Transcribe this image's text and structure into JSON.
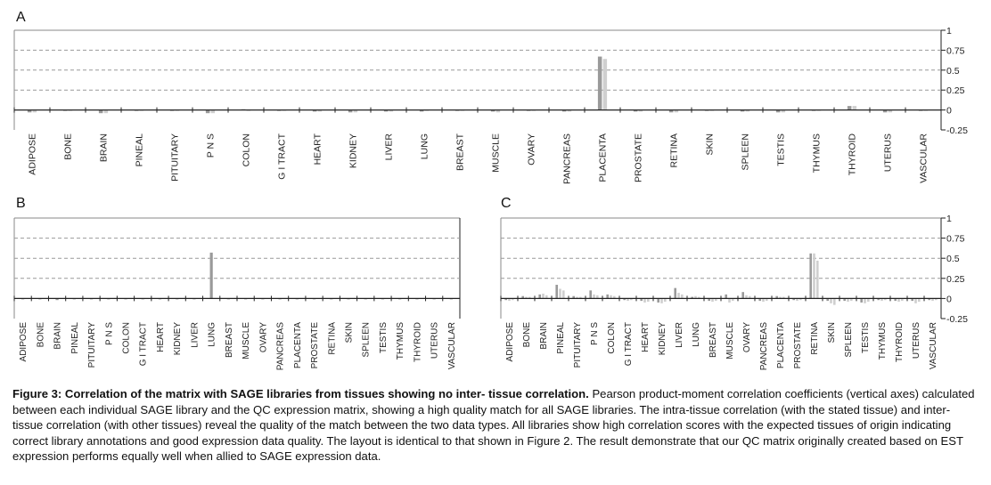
{
  "figure": {
    "caption_title": "Figure 3: Correlation of the matrix with SAGE libraries from tissues showing no inter- tissue correlation.",
    "caption_body": " Pearson product-moment correlation coefficients (vertical axes) calculated between each individual SAGE library and the QC expression matrix, showing a high quality match for all SAGE libraries.  The intra-tissue correlation (with the stated tissue) and inter-tissue correlation (with other tissues) reveal the quality of the match between the two data types.  All libraries show high correlation scores with the expected tissues of origin indicating correct library annotations and good expression data quality.  The layout is identical to that shown in Figure 2.  The result demonstrate that our QC matrix originally created based on EST expression performs equally well when allied to SAGE expression data."
  },
  "colors": {
    "dark_bar": "#9a9a9a",
    "light_bar": "#cfcfcf",
    "axis": "#222222",
    "grid": "#999999"
  },
  "chart_data": [
    {
      "panel": "A",
      "type": "bar",
      "ylim": [
        -0.25,
        1
      ],
      "yticks": [
        1,
        0.75,
        0.5,
        0.25,
        0,
        -0.25
      ],
      "categories": [
        "ADIPOSE",
        "BONE",
        "BRAIN",
        "PINEAL",
        "PITUITARY",
        "P N S",
        "COLON",
        "G I TRACT",
        "HEART",
        "KIDNEY",
        "LIVER",
        "LUNG",
        "BREAST",
        "MUSCLE",
        "OVARY",
        "PANCREAS",
        "PLACENTA",
        "PROSTATE",
        "RETINA",
        "SKIN",
        "SPLEEN",
        "TESTIS",
        "THYMUS",
        "THYROID",
        "UTERUS",
        "VASCULAR"
      ],
      "grid": "dashed horizontal",
      "series": [
        {
          "values": [
            -0.03,
            -0.01,
            -0.04,
            -0.01,
            -0.01,
            -0.04,
            0.01,
            -0.01,
            -0.02,
            -0.03,
            -0.02,
            -0.02,
            -0.01,
            -0.02,
            -0.01,
            -0.02,
            0.67,
            -0.02,
            -0.03,
            -0.01,
            -0.02,
            -0.03,
            -0.01,
            0.05,
            -0.03,
            -0.01
          ]
        },
        {
          "values": [
            -0.03,
            -0.01,
            -0.04,
            -0.01,
            -0.01,
            -0.04,
            0.0,
            -0.01,
            -0.02,
            -0.03,
            -0.02,
            -0.01,
            -0.01,
            -0.03,
            -0.01,
            -0.02,
            0.64,
            -0.02,
            -0.03,
            -0.01,
            -0.02,
            -0.03,
            -0.01,
            0.05,
            -0.03,
            -0.01
          ]
        }
      ]
    },
    {
      "panel": "B",
      "type": "bar",
      "ylim": [
        -0.25,
        1
      ],
      "categories": [
        "ADIPOSE",
        "BONE",
        "BRAIN",
        "PINEAL",
        "PITUITARY",
        "P N S",
        "COLON",
        "G I TRACT",
        "HEART",
        "KIDNEY",
        "LIVER",
        "LUNG",
        "BREAST",
        "MUSCLE",
        "OVARY",
        "PANCREAS",
        "PLACENTA",
        "PROSTATE",
        "RETINA",
        "SKIN",
        "SPLEEN",
        "TESTIS",
        "THYMUS",
        "THYROID",
        "UTERUS",
        "VASCULAR"
      ],
      "grid": "dashed horizontal",
      "series": [
        {
          "values": [
            -0.01,
            -0.01,
            -0.02,
            -0.01,
            -0.01,
            -0.01,
            -0.01,
            -0.01,
            -0.01,
            -0.01,
            -0.01,
            0.57,
            -0.01,
            -0.01,
            -0.01,
            -0.01,
            -0.01,
            -0.01,
            -0.01,
            -0.01,
            -0.01,
            -0.01,
            -0.01,
            -0.01,
            -0.01,
            -0.01
          ]
        }
      ]
    },
    {
      "panel": "C",
      "type": "bar",
      "ylim": [
        -0.25,
        1
      ],
      "yticks": [
        1,
        0.75,
        0.5,
        0.25,
        0,
        -0.25
      ],
      "categories": [
        "ADIPOSE",
        "BONE",
        "BRAIN",
        "PINEAL",
        "PITUITARY",
        "P N S",
        "COLON",
        "G I TRACT",
        "HEART",
        "KIDNEY",
        "LIVER",
        "LUNG",
        "BREAST",
        "MUSCLE",
        "OVARY",
        "PANCREAS",
        "PLACENTA",
        "PROSTATE",
        "RETINA",
        "SKIN",
        "SPLEEN",
        "TESTIS",
        "THYMUS",
        "THYROID",
        "UTERUS",
        "VASCULAR"
      ],
      "grid": "dashed horizontal",
      "series": [
        {
          "values": [
            -0.02,
            0.03,
            0.05,
            0.17,
            0.03,
            0.1,
            0.05,
            -0.02,
            -0.03,
            -0.05,
            0.13,
            0.02,
            -0.03,
            0.05,
            0.08,
            -0.03,
            0.03,
            -0.02,
            0.56,
            -0.03,
            -0.03,
            -0.05,
            -0.02,
            -0.03,
            -0.03,
            -0.02
          ]
        },
        {
          "values": [
            -0.03,
            0.02,
            0.06,
            0.12,
            0.02,
            0.05,
            0.04,
            -0.03,
            -0.05,
            -0.06,
            0.07,
            0.03,
            -0.04,
            -0.05,
            0.04,
            -0.04,
            0.02,
            -0.03,
            0.56,
            -0.06,
            -0.04,
            -0.06,
            -0.03,
            -0.04,
            -0.06,
            -0.03
          ]
        },
        {
          "values": [
            -0.02,
            0.02,
            0.04,
            0.1,
            0.02,
            0.04,
            0.03,
            -0.02,
            -0.04,
            -0.04,
            0.05,
            0.02,
            -0.03,
            -0.03,
            0.03,
            -0.03,
            0.02,
            -0.02,
            0.47,
            -0.08,
            -0.03,
            -0.04,
            -0.02,
            -0.03,
            -0.04,
            -0.02
          ]
        }
      ]
    }
  ]
}
